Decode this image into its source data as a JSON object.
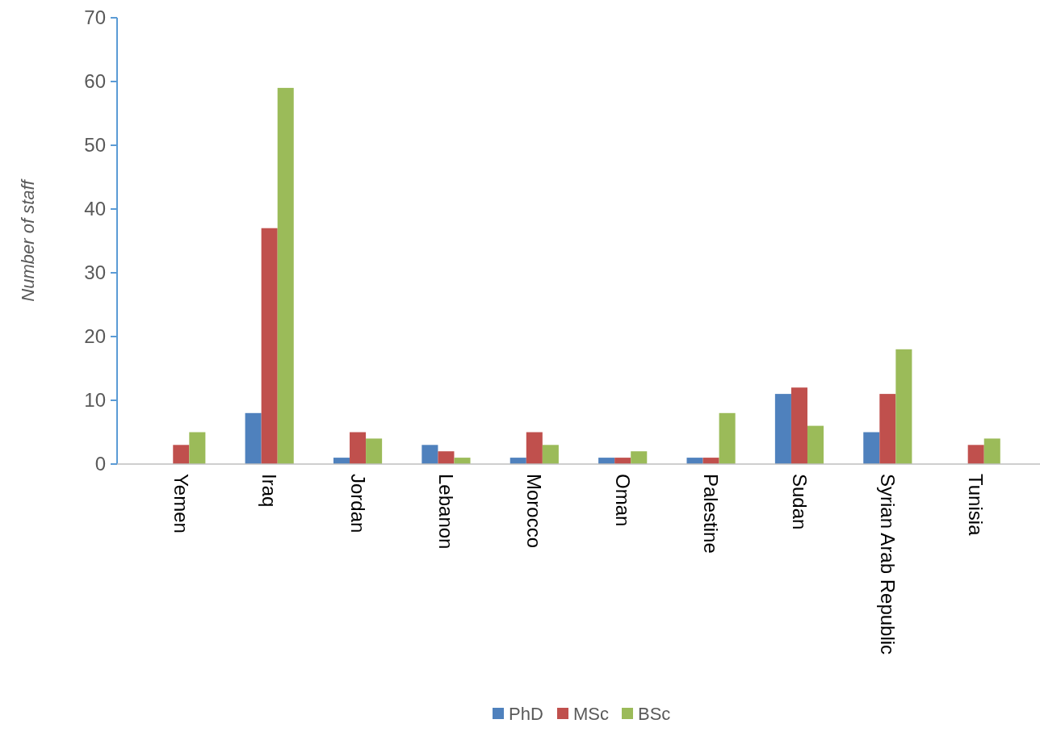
{
  "chart_data": {
    "type": "bar",
    "ylabel": "Number of staff",
    "categories": [
      "Yemen",
      "Iraq",
      "Jordan",
      "Lebanon",
      "Morocco",
      "Oman",
      "Palestine",
      "Sudan",
      "Syrian Arab Republic",
      "Tunisia"
    ],
    "series": [
      {
        "name": "PhD",
        "color": "#4f81bd",
        "values": [
          0,
          8,
          1,
          3,
          1,
          1,
          1,
          11,
          5,
          0
        ]
      },
      {
        "name": "MSc",
        "color": "#c0504d",
        "values": [
          3,
          37,
          5,
          2,
          5,
          1,
          1,
          12,
          11,
          3
        ]
      },
      {
        "name": "BSc",
        "color": "#9bbb59",
        "values": [
          5,
          59,
          4,
          1,
          3,
          2,
          8,
          6,
          18,
          4
        ]
      }
    ],
    "ylim": [
      0,
      70
    ],
    "yticks": [
      0,
      10,
      20,
      30,
      40,
      50,
      60,
      70
    ],
    "grid": false,
    "legend": "bottom"
  }
}
